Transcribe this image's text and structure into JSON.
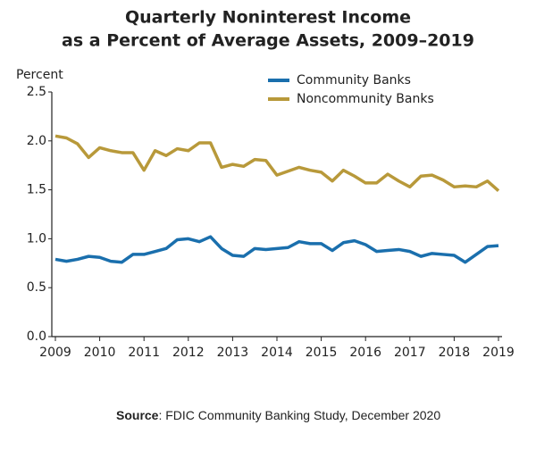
{
  "chart_data": {
    "type": "line",
    "title": "Quarterly Noninterest Income",
    "subtitle": "as a Percent of Average Assets, 2009–2019",
    "y_label": "Percent",
    "source_label": "Source",
    "source_text": ": FDIC Community Banking Study, December 2020",
    "x": [
      2009,
      2009.25,
      2009.5,
      2009.75,
      2010,
      2010.25,
      2010.5,
      2010.75,
      2011,
      2011.25,
      2011.5,
      2011.75,
      2012,
      2012.25,
      2012.5,
      2012.75,
      2013,
      2013.25,
      2013.5,
      2013.75,
      2014,
      2014.25,
      2014.5,
      2014.75,
      2015,
      2015.25,
      2015.5,
      2015.75,
      2016,
      2016.25,
      2016.5,
      2016.75,
      2017,
      2017.25,
      2017.5,
      2017.75,
      2018,
      2018.25,
      2018.5,
      2018.75,
      2019
    ],
    "series": [
      {
        "name": "Community Banks",
        "color": "#1a6fad",
        "values": [
          0.79,
          0.77,
          0.79,
          0.82,
          0.81,
          0.77,
          0.76,
          0.84,
          0.84,
          0.87,
          0.9,
          0.99,
          1.0,
          0.97,
          1.02,
          0.9,
          0.83,
          0.82,
          0.9,
          0.89,
          0.9,
          0.91,
          0.97,
          0.95,
          0.95,
          0.88,
          0.96,
          0.98,
          0.94,
          0.87,
          0.88,
          0.89,
          0.87,
          0.82,
          0.85,
          0.84,
          0.83,
          0.76,
          0.84,
          0.92,
          0.93
        ]
      },
      {
        "name": "Noncommunity Banks",
        "color": "#b8993a",
        "values": [
          2.05,
          2.03,
          1.97,
          1.83,
          1.93,
          1.9,
          1.88,
          1.88,
          1.7,
          1.9,
          1.85,
          1.92,
          1.9,
          1.98,
          1.98,
          1.73,
          1.76,
          1.74,
          1.81,
          1.8,
          1.65,
          1.69,
          1.73,
          1.7,
          1.68,
          1.59,
          1.7,
          1.64,
          1.57,
          1.57,
          1.66,
          1.59,
          1.53,
          1.64,
          1.65,
          1.6,
          1.53,
          1.54,
          1.53,
          1.59,
          1.49
        ]
      }
    ],
    "xlim": [
      2009,
      2019
    ],
    "xticks": [
      2009,
      2010,
      2011,
      2012,
      2013,
      2014,
      2015,
      2016,
      2017,
      2018,
      2019
    ],
    "ylim": [
      0,
      2.5
    ],
    "yticks": [
      {
        "value": 0,
        "label": "0.0"
      },
      0.5,
      {
        "value": 1,
        "label": "1.0"
      },
      1.5,
      {
        "value": 2,
        "label": "2.0"
      },
      2.5
    ],
    "grid": false
  }
}
